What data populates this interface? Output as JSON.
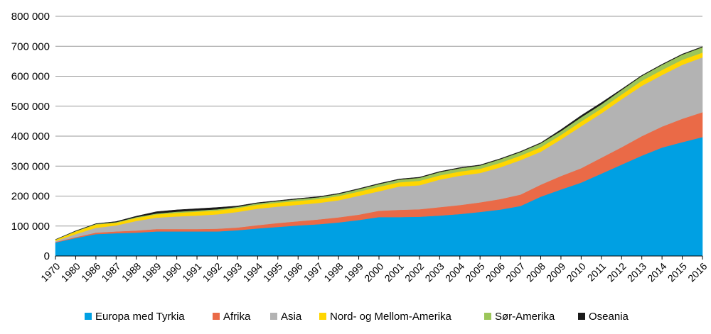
{
  "chart_data": {
    "type": "area",
    "stacked": true,
    "categories": [
      "1970",
      "1980",
      "1986",
      "1987",
      "1988",
      "1989",
      "1990",
      "1991",
      "1992",
      "1993",
      "1994",
      "1995",
      "1996",
      "1997",
      "1998",
      "1999",
      "2000",
      "2001",
      "2002",
      "2003",
      "2004",
      "2005",
      "2006",
      "2007",
      "2008",
      "2009",
      "2010",
      "2011",
      "2012",
      "2013",
      "2014",
      "2015",
      "2016"
    ],
    "ylim": [
      0,
      800000
    ],
    "yticks": [
      0,
      100000,
      200000,
      300000,
      400000,
      500000,
      600000,
      700000,
      800000
    ],
    "ytick_labels": [
      "0",
      "100 000",
      "200 000",
      "300 000",
      "400 000",
      "500 000",
      "600 000",
      "700 000",
      "800 000"
    ],
    "grid": true,
    "legend_position": "bottom",
    "series": [
      {
        "name": "Europa med Tyrkia",
        "color": "#00A0E3",
        "values": [
          45000,
          60000,
          73000,
          76000,
          78000,
          82000,
          82000,
          82000,
          82000,
          86000,
          92000,
          97000,
          102000,
          106000,
          112000,
          120000,
          130000,
          130000,
          131000,
          135000,
          140000,
          147000,
          155000,
          167000,
          198000,
          222000,
          245000,
          275000,
          305000,
          335000,
          362000,
          380000,
          397000
        ]
      },
      {
        "name": "Afrika",
        "color": "#EA6A47",
        "values": [
          2000,
          3000,
          5000,
          6000,
          7000,
          8000,
          8000,
          8000,
          9000,
          9000,
          11000,
          13000,
          14000,
          16000,
          17000,
          18000,
          21000,
          24000,
          25000,
          28000,
          30000,
          32000,
          35000,
          38000,
          40000,
          45000,
          48000,
          53000,
          58000,
          65000,
          70000,
          78000,
          83000
        ]
      },
      {
        "name": "Asia",
        "color": "#B3B3B3",
        "values": [
          3000,
          10000,
          16000,
          20000,
          32000,
          38000,
          42000,
          45000,
          48000,
          52000,
          55000,
          55000,
          55000,
          55000,
          57000,
          63000,
          65000,
          78000,
          80000,
          92000,
          98000,
          98000,
          106000,
          115000,
          110000,
          122000,
          140000,
          148000,
          160000,
          168000,
          172000,
          180000,
          183000
        ]
      },
      {
        "name": "Nord- og Mellom-Amerika",
        "color": "#FFD600",
        "values": [
          4000,
          9000,
          11000,
          9000,
          10000,
          11000,
          12000,
          13000,
          13000,
          13000,
          13000,
          13000,
          13000,
          13000,
          14000,
          14000,
          15000,
          14000,
          15000,
          14000,
          14000,
          14000,
          15000,
          15000,
          15000,
          15000,
          16000,
          16000,
          16000,
          17000,
          17000,
          17000,
          16000
        ]
      },
      {
        "name": "Sør-Amerika",
        "color": "#9CC65A",
        "values": [
          1000,
          1000,
          2000,
          2000,
          3000,
          3000,
          4000,
          4000,
          4000,
          4000,
          5000,
          5000,
          6000,
          6000,
          7000,
          8000,
          9000,
          9000,
          10000,
          11000,
          11000,
          11000,
          12000,
          12000,
          13000,
          13000,
          14000,
          14000,
          15000,
          16000,
          17000,
          17000,
          18000
        ]
      },
      {
        "name": "Oseania",
        "color": "#1A1A1A",
        "values": [
          0,
          1000,
          1000,
          2000,
          3000,
          6000,
          6000,
          6000,
          6000,
          3000,
          2000,
          2000,
          2000,
          2000,
          2000,
          2000,
          2000,
          2000,
          2000,
          2000,
          2000,
          2000,
          2000,
          2000,
          2000,
          5000,
          6000,
          6000,
          3000,
          2000,
          2000,
          2000,
          2000
        ]
      }
    ]
  }
}
